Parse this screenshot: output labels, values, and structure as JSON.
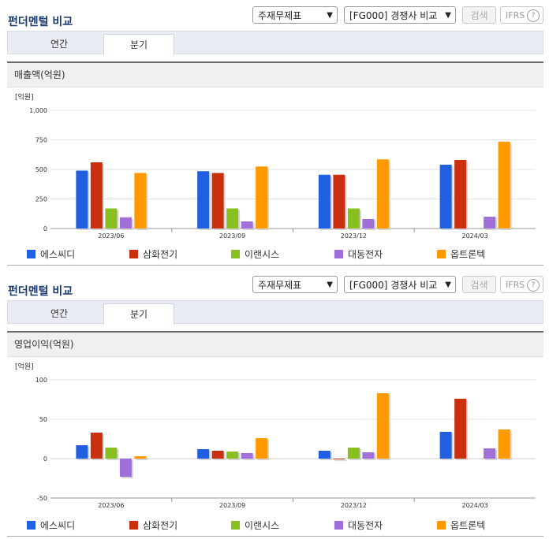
{
  "controls": {
    "statement_select": "주재무제표",
    "compare_select": "[FG000] 경쟁사 비교",
    "search_button": "검색",
    "ifrs_label": "IFRS",
    "ifrs_help": "?"
  },
  "colors": {
    "에스씨디": "#2060e0",
    "삼화전기": "#c83010",
    "이랜시스": "#88c020",
    "대동전자": "#a070d8",
    "옵트론텍": "#ff9900"
  },
  "sections": [
    {
      "title": "펀더멘털 비교",
      "tabs": [
        "연간",
        "분기"
      ],
      "active_tab": "분기",
      "chart_header": "매출액(억원)",
      "unit_label": "[억원]"
    },
    {
      "title": "펀더멘털 비교",
      "tabs": [
        "연간",
        "분기"
      ],
      "active_tab": "분기",
      "chart_header": "영업이익(억원)",
      "unit_label": "[억원]"
    }
  ],
  "chart_data": [
    {
      "type": "bar",
      "title": "매출액(억원)",
      "ylabel": "[억원]",
      "categories": [
        "2023/06",
        "2023/09",
        "2023/12",
        "2024/03"
      ],
      "ylim": [
        0,
        1000
      ],
      "yticks": [
        0,
        250,
        500,
        750,
        1000
      ],
      "ytick_labels": [
        "0",
        "250",
        "500",
        "750",
        "1,000"
      ],
      "grid": true,
      "legend": "bottom",
      "series": [
        {
          "name": "에스씨디",
          "values": [
            490,
            485,
            455,
            540
          ]
        },
        {
          "name": "삼화전기",
          "values": [
            560,
            470,
            455,
            580
          ]
        },
        {
          "name": "이랜시스",
          "values": [
            170,
            170,
            170,
            null
          ]
        },
        {
          "name": "대동전자",
          "values": [
            95,
            60,
            80,
            100
          ]
        },
        {
          "name": "옵트론텍",
          "values": [
            470,
            525,
            585,
            735
          ]
        }
      ]
    },
    {
      "type": "bar",
      "title": "영업이익(억원)",
      "ylabel": "[억원]",
      "categories": [
        "2023/06",
        "2023/09",
        "2023/12",
        "2024/03"
      ],
      "ylim": [
        -50,
        100
      ],
      "yticks": [
        -50,
        0,
        50,
        100
      ],
      "ytick_labels": [
        "-50",
        "0",
        "50",
        "100"
      ],
      "grid": true,
      "legend": "bottom",
      "series": [
        {
          "name": "에스씨디",
          "values": [
            17,
            12,
            10,
            34
          ]
        },
        {
          "name": "삼화전기",
          "values": [
            33,
            10,
            -1,
            76
          ]
        },
        {
          "name": "이랜시스",
          "values": [
            14,
            9,
            14,
            null
          ]
        },
        {
          "name": "대동전자",
          "values": [
            -23,
            7,
            8,
            13
          ]
        },
        {
          "name": "옵트론텍",
          "values": [
            3,
            26,
            83,
            37
          ]
        }
      ]
    }
  ]
}
